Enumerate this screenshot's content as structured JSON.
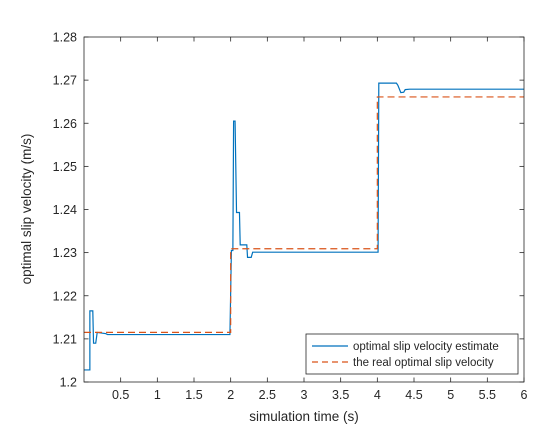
{
  "chart_data": {
    "type": "line",
    "title": "",
    "xlabel": "simulation time (s)",
    "ylabel": "optimal slip velocity (m/s)",
    "xlim": [
      0,
      6
    ],
    "ylim": [
      1.2,
      1.28
    ],
    "x_ticks": [
      0.5,
      1,
      1.5,
      2,
      2.5,
      3,
      3.5,
      4,
      4.5,
      5,
      5.5,
      6
    ],
    "x_tick_labels": [
      "0.5",
      "1",
      "1.5",
      "2",
      "2.5",
      "3",
      "3.5",
      "4",
      "4.5",
      "5",
      "5.5",
      "6"
    ],
    "y_ticks": [
      1.2,
      1.21,
      1.22,
      1.23,
      1.24,
      1.25,
      1.26,
      1.27,
      1.28
    ],
    "y_tick_labels": [
      "1.2",
      "1.21",
      "1.22",
      "1.23",
      "1.24",
      "1.25",
      "1.26",
      "1.27",
      "1.28"
    ],
    "grid": false,
    "legend_position": "bottom-right",
    "series": [
      {
        "name": "optimal slip velocity estimate",
        "color": "#0072BD",
        "style": "solid",
        "points": [
          [
            0.0,
            1.2028
          ],
          [
            0.08,
            1.2028
          ],
          [
            0.08,
            1.2165
          ],
          [
            0.12,
            1.2165
          ],
          [
            0.13,
            1.209
          ],
          [
            0.16,
            1.209
          ],
          [
            0.18,
            1.2115
          ],
          [
            0.3,
            1.2112
          ],
          [
            0.32,
            1.211
          ],
          [
            1.99,
            1.211
          ],
          [
            2.01,
            1.2305
          ],
          [
            2.03,
            1.2305
          ],
          [
            2.04,
            1.2605
          ],
          [
            2.06,
            1.2605
          ],
          [
            2.08,
            1.2393
          ],
          [
            2.12,
            1.2393
          ],
          [
            2.13,
            1.2318
          ],
          [
            2.22,
            1.2318
          ],
          [
            2.23,
            1.2289
          ],
          [
            2.28,
            1.2289
          ],
          [
            2.3,
            1.2301
          ],
          [
            4.01,
            1.2301
          ],
          [
            4.02,
            1.2693
          ],
          [
            4.26,
            1.2693
          ],
          [
            4.28,
            1.2688
          ],
          [
            4.32,
            1.2671
          ],
          [
            4.36,
            1.2672
          ],
          [
            4.38,
            1.2678
          ],
          [
            4.44,
            1.2679
          ],
          [
            6.0,
            1.2679
          ]
        ]
      },
      {
        "name": "the real optimal slip velocity",
        "color": "#D95319",
        "style": "dashed",
        "points": [
          [
            0.0,
            1.2115
          ],
          [
            2.0,
            1.2115
          ],
          [
            2.0,
            1.2309
          ],
          [
            4.0,
            1.2309
          ],
          [
            4.0,
            1.2661
          ],
          [
            6.0,
            1.2661
          ]
        ]
      }
    ]
  }
}
